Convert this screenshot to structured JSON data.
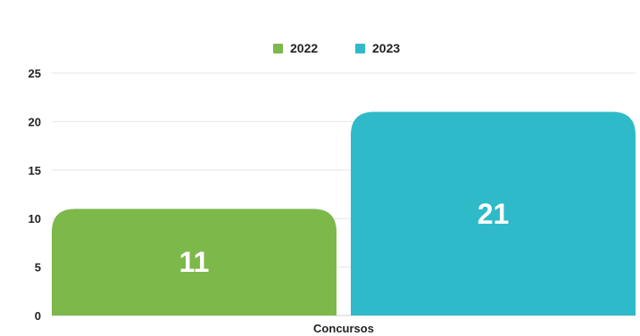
{
  "chart_data": {
    "type": "bar",
    "categories": [
      "Concursos"
    ],
    "series": [
      {
        "name": "2022",
        "values": [
          11
        ],
        "color": "#7db84a"
      },
      {
        "name": "2023",
        "values": [
          21
        ],
        "color": "#2fbac9"
      }
    ],
    "ylim": [
      0,
      25
    ],
    "yticks": [
      0,
      5,
      10,
      15,
      20,
      25
    ],
    "grid": true,
    "legend_position": "top-center",
    "data_labels": true
  }
}
